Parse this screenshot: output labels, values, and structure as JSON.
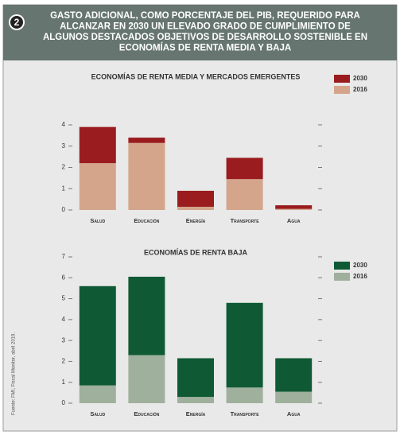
{
  "badge": "2",
  "title": [
    "GASTO ADICIONAL, COMO PORCENTAJE DEL PIB,  REQUERIDO PARA",
    "ALCANZAR EN 2030 UN ELEVADO GRADO DE CUMPLIMIENTO DE",
    "ALGUNOS DESTACADOS OBJETIVOS DE DESARROLLO SOSTENIBLE EN",
    "ECONOMÍAS DE RENTA MEDIA Y BAJA"
  ],
  "source": "Fuente: FMI, Fiscal Monitor, abril 2019.",
  "chart_data": [
    {
      "type": "bar",
      "stacked": true,
      "title": "ECONOMÍAS DE RENTA MEDIA Y MERCADOS EMERGENTES",
      "categories": [
        "Salud",
        "Educación",
        "Energía",
        "Transporte",
        "Agua"
      ],
      "series": [
        {
          "name": "2016",
          "color": "#d4a58b",
          "values": [
            2.2,
            3.15,
            0.15,
            1.45,
            0.05
          ]
        },
        {
          "name": "2030",
          "color": "#9a1c1f",
          "values": [
            1.7,
            0.25,
            0.75,
            1.0,
            0.17
          ]
        }
      ],
      "ylim": [
        0,
        4
      ],
      "yticks": [
        0,
        1,
        2,
        3,
        4
      ]
    },
    {
      "type": "bar",
      "stacked": true,
      "title": "ECONOMÍAS DE RENTA BAJA",
      "categories": [
        "Salud",
        "Educación",
        "Energía",
        "Transporte",
        "Agua"
      ],
      "series": [
        {
          "name": "2016",
          "color": "#9fb09c",
          "values": [
            0.85,
            2.3,
            0.3,
            0.75,
            0.55
          ]
        },
        {
          "name": "2030",
          "color": "#0f5a34",
          "values": [
            4.75,
            3.75,
            1.85,
            4.05,
            1.6
          ]
        }
      ],
      "ylim": [
        0,
        7
      ],
      "yticks": [
        0,
        1,
        2,
        3,
        4,
        5,
        6,
        7
      ]
    }
  ]
}
